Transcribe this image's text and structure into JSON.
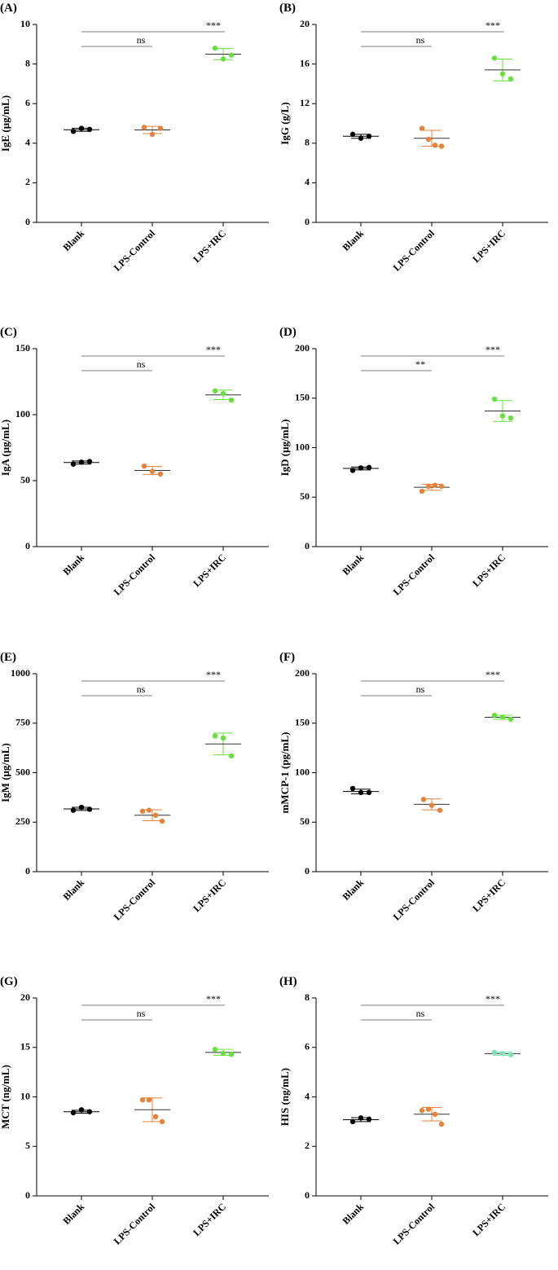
{
  "chart_data": [
    {
      "type": "dotplot",
      "panel": "(A)",
      "ylabel": "IgE (μg/mL)",
      "categories": [
        "Blank",
        "LPS-Control",
        "LPS+IRC"
      ],
      "groups": [
        {
          "color": "#000000",
          "points": [
            4.6,
            4.75,
            4.7
          ],
          "mean": 4.68,
          "sd": 0.08
        },
        {
          "color": "#e8823a",
          "points": [
            4.8,
            4.45,
            4.75
          ],
          "mean": 4.67,
          "sd": 0.18
        },
        {
          "color": "#66e03c",
          "points": [
            8.8,
            8.25,
            8.45
          ],
          "mean": 8.5,
          "sd": 0.28
        }
      ],
      "annotations": [
        "ns",
        "***"
      ],
      "ylim": [
        0,
        10
      ],
      "yticks": [
        0,
        2,
        4,
        6,
        8,
        10
      ]
    },
    {
      "type": "dotplot",
      "panel": "(B)",
      "ylabel": "IgG (g/L)",
      "categories": [
        "Blank",
        "LPS-Control",
        "LPS+IRC"
      ],
      "groups": [
        {
          "color": "#000000",
          "points": [
            8.9,
            8.5,
            8.7
          ],
          "mean": 8.7,
          "sd": 0.2
        },
        {
          "color": "#e8823a",
          "points": [
            9.5,
            8.4,
            7.8,
            7.7
          ],
          "mean": 8.5,
          "sd": 0.8
        },
        {
          "color": "#66e03c",
          "points": [
            16.6,
            15.0,
            14.5
          ],
          "mean": 15.4,
          "sd": 1.1
        }
      ],
      "annotations": [
        "ns",
        "***"
      ],
      "ylim": [
        0,
        20
      ],
      "yticks": [
        0,
        4,
        8,
        12,
        16,
        20
      ]
    },
    {
      "type": "dotplot",
      "panel": "(C)",
      "ylabel": "IgA (μg/mL)",
      "categories": [
        "Blank",
        "LPS-Control",
        "LPS+IRC"
      ],
      "groups": [
        {
          "color": "#000000",
          "points": [
            62.5,
            64,
            64.5
          ],
          "mean": 63.7,
          "sd": 1.2
        },
        {
          "color": "#e8823a",
          "points": [
            61,
            57,
            55
          ],
          "mean": 57.7,
          "sd": 3
        },
        {
          "color": "#66e03c",
          "points": [
            118,
            116,
            111
          ],
          "mean": 115,
          "sd": 3.6
        }
      ],
      "annotations": [
        "ns",
        "***"
      ],
      "ylim": [
        0,
        150
      ],
      "yticks": [
        0,
        50,
        100,
        150
      ]
    },
    {
      "type": "dotplot",
      "panel": "(D)",
      "ylabel": "IgD (μg/mL)",
      "categories": [
        "Blank",
        "LPS-Control",
        "LPS+IRC"
      ],
      "groups": [
        {
          "color": "#000000",
          "points": [
            77,
            79.5,
            80
          ],
          "mean": 79,
          "sd": 1.5
        },
        {
          "color": "#e8823a",
          "points": [
            56,
            61,
            62,
            61
          ],
          "mean": 60,
          "sd": 3
        },
        {
          "color": "#66e03c",
          "points": [
            149,
            132,
            130
          ],
          "mean": 137,
          "sd": 10.5
        }
      ],
      "annotations": [
        "**",
        "***"
      ],
      "ylim": [
        0,
        200
      ],
      "yticks": [
        0,
        50,
        100,
        150,
        200
      ]
    },
    {
      "type": "dotplot",
      "panel": "(E)",
      "ylabel": "IgM (μg/mL)",
      "categories": [
        "Blank",
        "LPS-Control",
        "LPS+IRC"
      ],
      "groups": [
        {
          "color": "#000000",
          "points": [
            310,
            325,
            315
          ],
          "mean": 317,
          "sd": 8
        },
        {
          "color": "#e8823a",
          "points": [
            305,
            310,
            285,
            255
          ],
          "mean": 285,
          "sd": 28
        },
        {
          "color": "#66e03c",
          "points": [
            685,
            675,
            585
          ],
          "mean": 645,
          "sd": 55
        }
      ],
      "annotations": [
        "ns",
        "***"
      ],
      "ylim": [
        0,
        1000
      ],
      "yticks": [
        0,
        250,
        500,
        750,
        1000
      ]
    },
    {
      "type": "dotplot",
      "panel": "(F)",
      "ylabel": "mMCP-1 (pg/mL)",
      "categories": [
        "Blank",
        "LPS-Control",
        "LPS+IRC"
      ],
      "groups": [
        {
          "color": "#000000",
          "points": [
            84,
            80,
            80
          ],
          "mean": 81,
          "sd": 2.3
        },
        {
          "color": "#e8823a",
          "points": [
            73,
            67,
            62
          ],
          "mean": 68,
          "sd": 5.5
        },
        {
          "color": "#66e03c",
          "points": [
            158,
            156,
            154
          ],
          "mean": 156,
          "sd": 2
        }
      ],
      "annotations": [
        "ns",
        "***"
      ],
      "ylim": [
        0,
        200
      ],
      "yticks": [
        0,
        50,
        100,
        150,
        200
      ]
    },
    {
      "type": "dotplot",
      "panel": "(G)",
      "ylabel": "MCT (ng/mL)",
      "categories": [
        "Blank",
        "LPS-Control",
        "LPS+IRC"
      ],
      "groups": [
        {
          "color": "#000000",
          "points": [
            8.4,
            8.7,
            8.5
          ],
          "mean": 8.5,
          "sd": 0.15
        },
        {
          "color": "#e8823a",
          "points": [
            9.7,
            9.7,
            8,
            7.5
          ],
          "mean": 8.7,
          "sd": 1.2
        },
        {
          "color": "#66e03c",
          "points": [
            14.8,
            14.4,
            14.3
          ],
          "mean": 14.5,
          "sd": 0.3
        }
      ],
      "annotations": [
        "ns",
        "***"
      ],
      "ylim": [
        0,
        20
      ],
      "yticks": [
        0,
        5,
        10,
        15,
        20
      ]
    },
    {
      "type": "dotplot",
      "panel": "(H)",
      "ylabel": "HIS (ng/mL)",
      "categories": [
        "Blank",
        "LPS-Control",
        "LPS+IRC"
      ],
      "groups": [
        {
          "color": "#000000",
          "points": [
            3.0,
            3.15,
            3.1
          ],
          "mean": 3.08,
          "sd": 0.08
        },
        {
          "color": "#e8823a",
          "points": [
            3.45,
            3.5,
            3.3,
            2.9
          ],
          "mean": 3.3,
          "sd": 0.27
        },
        {
          "color": "#7de3b8",
          "points": [
            5.8,
            5.75,
            5.7
          ],
          "mean": 5.75,
          "sd": 0.07
        }
      ],
      "annotations": [
        "ns",
        "***"
      ],
      "ylim": [
        0,
        8
      ],
      "yticks": [
        0,
        2,
        4,
        6,
        8
      ]
    }
  ]
}
